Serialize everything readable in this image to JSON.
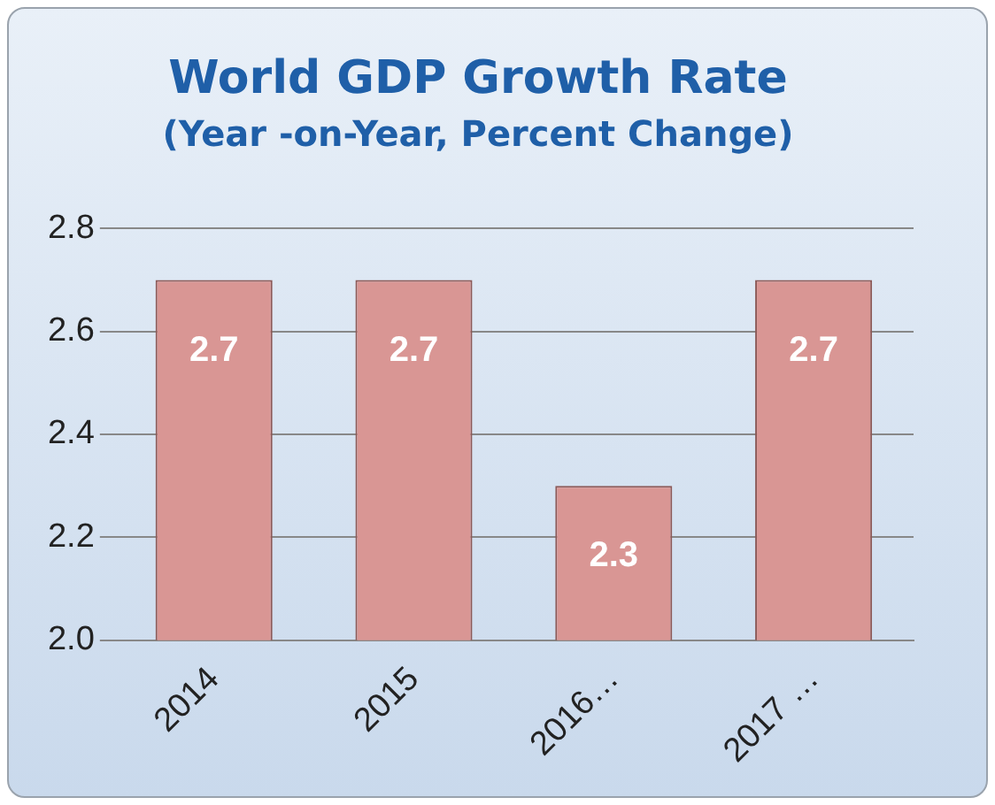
{
  "chart_data": {
    "type": "bar",
    "title": "World GDP Growth Rate",
    "subtitle": "(Year -on-Year, Percent Change)",
    "categories": [
      "2014",
      "2015",
      "2016…",
      "2017 …"
    ],
    "values": [
      2.7,
      2.7,
      2.3,
      2.7
    ],
    "color": "#d99694",
    "ylim": [
      2.0,
      2.8
    ],
    "yticks": [
      {
        "value": 2.0,
        "label": "2.0"
      },
      2.2,
      2.4,
      2.6,
      2.8
    ],
    "grid": "y",
    "data_labels": true,
    "legend": false
  }
}
